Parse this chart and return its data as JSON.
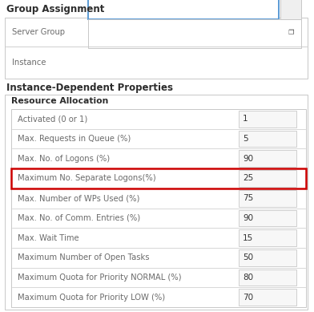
{
  "background_color": "#ffffff",
  "group_assignment_title": "Group Assignment",
  "instance_dependent_title": "Instance-Dependent Properties",
  "resource_allocation_title": "Resource Allocation",
  "rows": [
    {
      "label": "Activated (0 or 1)",
      "value": "1",
      "highlighted": false
    },
    {
      "label": "Max. Requests in Queue (%)",
      "value": "5",
      "highlighted": false
    },
    {
      "label": "Max. No. of Logons (%)",
      "value": "90",
      "highlighted": false
    },
    {
      "label": "Maximum No. Separate Logons(%)",
      "value": "25",
      "highlighted": true
    },
    {
      "label": "Max. Number of WPs Used (%)",
      "value": "75",
      "highlighted": false
    },
    {
      "label": "Max. No. of Comm. Entries (%)",
      "value": "90",
      "highlighted": false
    },
    {
      "label": "Max. Wait Time",
      "value": "15",
      "highlighted": false
    },
    {
      "label": "Maximum Number of Open Tasks",
      "value": "50",
      "highlighted": false
    },
    {
      "label": "Maximum Quota for Priority NORMAL (%)",
      "value": "80",
      "highlighted": false
    },
    {
      "label": "Maximum Quota for Priority LOW (%)",
      "value": "70",
      "highlighted": false
    }
  ],
  "label_color": "#6b6b6b",
  "title_color": "#333333",
  "section_title_color": "#2c2c2c",
  "border_color": "#c8c8c8",
  "highlight_border_color": "#cc0000",
  "server_group_border": "#5b9bd5",
  "title_fontsize": 8.5,
  "row_fontsize": 7.2,
  "subtitle_fontsize": 7.8,
  "value_fontsize": 7.5
}
